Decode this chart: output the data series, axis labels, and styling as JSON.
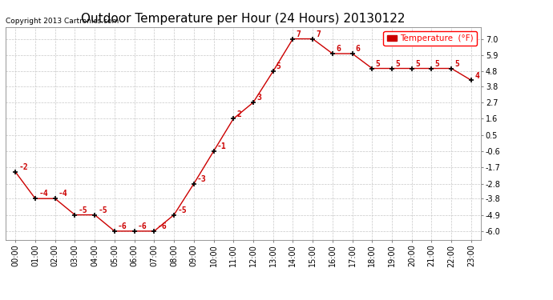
{
  "title": "Outdoor Temperature per Hour (24 Hours) 20130122",
  "copyright": "Copyright 2013 Cartronics.com",
  "legend_label": "Temperature  (°F)",
  "hours": [
    "00:00",
    "01:00",
    "02:00",
    "03:00",
    "04:00",
    "05:00",
    "06:00",
    "07:00",
    "08:00",
    "09:00",
    "10:00",
    "11:00",
    "12:00",
    "13:00",
    "14:00",
    "15:00",
    "16:00",
    "17:00",
    "18:00",
    "19:00",
    "20:00",
    "21:00",
    "22:00",
    "23:00"
  ],
  "temperatures": [
    -2.0,
    -3.8,
    -3.8,
    -4.9,
    -4.9,
    -6.0,
    -6.0,
    -6.0,
    -4.9,
    -2.8,
    -0.6,
    1.6,
    2.7,
    4.8,
    7.0,
    7.0,
    6.0,
    6.0,
    5.0,
    5.0,
    5.0,
    5.0,
    5.0,
    4.2
  ],
  "ytick_vals": [
    7.0,
    5.9,
    4.8,
    3.8,
    2.7,
    1.6,
    0.5,
    -0.6,
    -1.7,
    -2.8,
    -3.8,
    -4.9,
    -6.0
  ],
  "ytick_labels": [
    "7.0",
    "5.9",
    "4.8",
    "3.8",
    "2.7",
    "1.6",
    "0.5",
    "-0.6",
    "-1.7",
    "-2.8",
    "-3.8",
    "-4.9",
    "-6.0"
  ],
  "ylim": [
    -6.6,
    7.8
  ],
  "line_color": "#cc0000",
  "marker_color": "#000000",
  "bg_color": "#ffffff",
  "grid_color": "#c8c8c8",
  "title_fontsize": 11,
  "tick_fontsize": 7,
  "copyright_fontsize": 6.5,
  "annotation_color": "#cc0000",
  "annotation_fontsize": 7,
  "legend_fontsize": 7.5
}
